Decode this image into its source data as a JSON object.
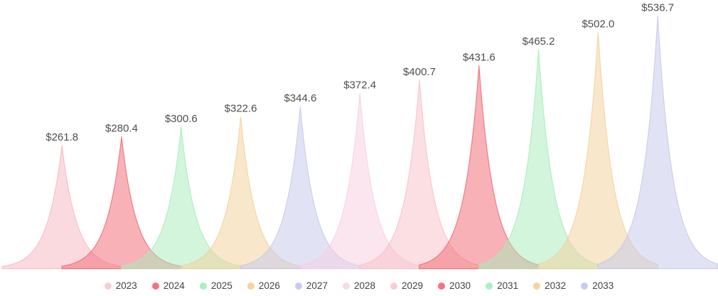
{
  "chart_data": {
    "type": "area",
    "subtype": "overlapping-sharp-peaks",
    "title": "",
    "xlabel": "",
    "ylabel": "",
    "value_prefix": "$",
    "categories": [
      "2023",
      "2024",
      "2025",
      "2026",
      "2027",
      "2028",
      "2029",
      "2030",
      "2031",
      "2032",
      "2033"
    ],
    "values": [
      261.8,
      280.4,
      300.6,
      322.6,
      344.6,
      372.4,
      400.7,
      431.6,
      465.2,
      502.0,
      536.7
    ],
    "data_labels": [
      "$261.8",
      "$280.4",
      "$300.6",
      "$322.6",
      "$344.6",
      "$372.4",
      "$400.7",
      "$431.6",
      "$465.2",
      "$502.0",
      "$536.7"
    ],
    "series_colors": [
      "#f6b6be",
      "#f1656f",
      "#a6ecb9",
      "#f4cf9a",
      "#c4c7ec",
      "#f8cde2",
      "#f8c0c5",
      "#f1656f",
      "#a6ecb9",
      "#f4cf9a",
      "#c4c7ec"
    ],
    "legend_dot_colors": [
      "#f8ccd3",
      "#f4747e",
      "#abefbe",
      "#f6d29c",
      "#c7cbf1",
      "#fbd8ea",
      "#f9cdd1",
      "#f4747e",
      "#abefbe",
      "#f6d29c",
      "#c7cbf1"
    ],
    "label_color": "#4d4d4d",
    "legend_text_color": "#444444",
    "background_color": "#ffffff",
    "legend_position": "bottom",
    "grid": false,
    "ylim": [
      0,
      570
    ]
  }
}
